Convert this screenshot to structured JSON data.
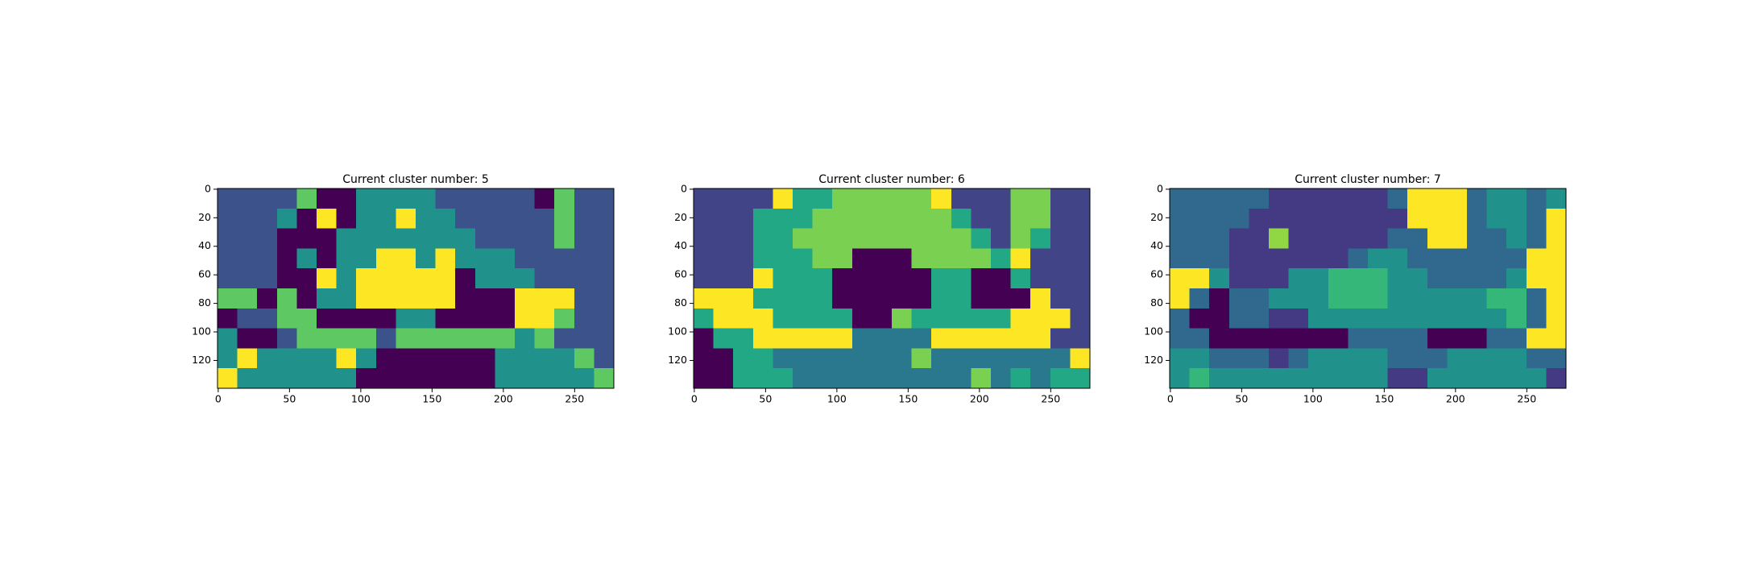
{
  "chart_data": [
    {
      "type": "heatmap",
      "title": "Current cluster number: 5",
      "colors": [
        "#440154",
        "#3b528b",
        "#21918c",
        "#5ec962",
        "#fde725"
      ],
      "xlim": [
        -0.5,
        277.5
      ],
      "ylim": [
        139.5,
        -0.5
      ],
      "xticks": [
        0,
        50,
        100,
        150,
        200,
        250
      ],
      "yticks": [
        0,
        20,
        40,
        60,
        80,
        100,
        120
      ],
      "z": [
        [
          1,
          1,
          1,
          1,
          3,
          0,
          0,
          2,
          2,
          2,
          2,
          1,
          1,
          1,
          1,
          1,
          0,
          3,
          1,
          1
        ],
        [
          1,
          1,
          1,
          2,
          0,
          4,
          0,
          2,
          2,
          4,
          2,
          2,
          1,
          1,
          1,
          1,
          1,
          3,
          1,
          1
        ],
        [
          1,
          1,
          1,
          0,
          0,
          0,
          2,
          2,
          2,
          2,
          2,
          2,
          2,
          1,
          1,
          1,
          1,
          3,
          1,
          1
        ],
        [
          1,
          1,
          1,
          0,
          2,
          0,
          2,
          2,
          4,
          4,
          2,
          4,
          2,
          2,
          2,
          1,
          1,
          1,
          1,
          1
        ],
        [
          1,
          1,
          1,
          0,
          0,
          4,
          2,
          4,
          4,
          4,
          4,
          4,
          0,
          2,
          2,
          2,
          1,
          1,
          1,
          1
        ],
        [
          3,
          3,
          0,
          3,
          0,
          2,
          2,
          4,
          4,
          4,
          4,
          4,
          0,
          0,
          0,
          4,
          4,
          4,
          1,
          1
        ],
        [
          0,
          1,
          1,
          3,
          3,
          0,
          0,
          0,
          0,
          2,
          2,
          0,
          0,
          0,
          0,
          4,
          4,
          3,
          1,
          1
        ],
        [
          2,
          0,
          0,
          1,
          3,
          3,
          3,
          3,
          1,
          3,
          3,
          3,
          3,
          3,
          3,
          2,
          3,
          1,
          1,
          1
        ],
        [
          2,
          4,
          2,
          2,
          2,
          2,
          4,
          2,
          0,
          0,
          0,
          0,
          0,
          0,
          2,
          2,
          2,
          2,
          3,
          1
        ],
        [
          4,
          2,
          2,
          2,
          2,
          2,
          2,
          0,
          0,
          0,
          0,
          0,
          0,
          0,
          2,
          2,
          2,
          2,
          2,
          3
        ]
      ]
    },
    {
      "type": "heatmap",
      "title": "Current cluster number: 6",
      "colors": [
        "#440154",
        "#414487",
        "#2a788e",
        "#22a884",
        "#7ad151",
        "#fde725"
      ],
      "xlim": [
        -0.5,
        277.5
      ],
      "ylim": [
        139.5,
        -0.5
      ],
      "xticks": [
        0,
        50,
        100,
        150,
        200,
        250
      ],
      "yticks": [
        0,
        20,
        40,
        60,
        80,
        100,
        120
      ],
      "z": [
        [
          1,
          1,
          1,
          1,
          5,
          3,
          3,
          4,
          4,
          4,
          4,
          4,
          5,
          1,
          1,
          1,
          4,
          4,
          1,
          1
        ],
        [
          1,
          1,
          1,
          3,
          3,
          3,
          4,
          4,
          4,
          4,
          4,
          4,
          4,
          3,
          1,
          1,
          4,
          4,
          1,
          1
        ],
        [
          1,
          1,
          1,
          3,
          3,
          4,
          4,
          4,
          4,
          4,
          4,
          4,
          4,
          4,
          3,
          1,
          4,
          3,
          1,
          1
        ],
        [
          1,
          1,
          1,
          3,
          3,
          3,
          4,
          4,
          0,
          0,
          0,
          4,
          4,
          4,
          4,
          3,
          5,
          1,
          1,
          1
        ],
        [
          1,
          1,
          1,
          5,
          3,
          3,
          3,
          0,
          0,
          0,
          0,
          0,
          3,
          3,
          0,
          0,
          3,
          1,
          1,
          1
        ],
        [
          5,
          5,
          5,
          3,
          3,
          3,
          3,
          0,
          0,
          0,
          0,
          0,
          3,
          3,
          0,
          0,
          0,
          5,
          1,
          1
        ],
        [
          3,
          5,
          5,
          5,
          3,
          3,
          3,
          3,
          0,
          0,
          4,
          3,
          3,
          3,
          3,
          3,
          5,
          5,
          5,
          1
        ],
        [
          0,
          3,
          3,
          5,
          5,
          5,
          5,
          5,
          2,
          2,
          2,
          2,
          5,
          5,
          5,
          5,
          5,
          5,
          1,
          1
        ],
        [
          0,
          0,
          3,
          3,
          2,
          2,
          2,
          2,
          2,
          2,
          2,
          4,
          2,
          2,
          2,
          2,
          2,
          2,
          2,
          5
        ],
        [
          0,
          0,
          3,
          3,
          3,
          2,
          2,
          2,
          2,
          2,
          2,
          2,
          2,
          2,
          4,
          2,
          3,
          2,
          3,
          3
        ]
      ]
    },
    {
      "type": "heatmap",
      "title": "Current cluster number: 7",
      "colors": [
        "#440154",
        "#443983",
        "#31688e",
        "#21918c",
        "#35b779",
        "#90d743",
        "#fde725"
      ],
      "xlim": [
        -0.5,
        277.5
      ],
      "ylim": [
        139.5,
        -0.5
      ],
      "xticks": [
        0,
        50,
        100,
        150,
        200,
        250
      ],
      "yticks": [
        0,
        20,
        40,
        60,
        80,
        100,
        120
      ],
      "z": [
        [
          2,
          2,
          2,
          2,
          2,
          1,
          1,
          1,
          1,
          1,
          1,
          2,
          6,
          6,
          6,
          2,
          3,
          3,
          2,
          3
        ],
        [
          2,
          2,
          2,
          2,
          1,
          1,
          1,
          1,
          1,
          1,
          1,
          1,
          6,
          6,
          6,
          2,
          3,
          3,
          2,
          6
        ],
        [
          2,
          2,
          2,
          1,
          1,
          5,
          1,
          1,
          1,
          1,
          1,
          2,
          2,
          6,
          6,
          2,
          2,
          3,
          2,
          6
        ],
        [
          2,
          2,
          2,
          1,
          1,
          1,
          1,
          1,
          1,
          2,
          3,
          3,
          2,
          2,
          2,
          2,
          2,
          2,
          6,
          6
        ],
        [
          6,
          6,
          3,
          1,
          1,
          1,
          3,
          3,
          4,
          4,
          4,
          3,
          3,
          2,
          2,
          2,
          2,
          3,
          6,
          6
        ],
        [
          6,
          2,
          0,
          2,
          2,
          3,
          3,
          3,
          4,
          4,
          4,
          3,
          3,
          3,
          3,
          3,
          4,
          4,
          2,
          6
        ],
        [
          2,
          0,
          0,
          2,
          2,
          1,
          1,
          3,
          3,
          3,
          3,
          3,
          3,
          3,
          3,
          3,
          3,
          4,
          2,
          6
        ],
        [
          2,
          2,
          0,
          0,
          0,
          0,
          0,
          0,
          0,
          2,
          2,
          2,
          2,
          0,
          0,
          0,
          2,
          2,
          6,
          6
        ],
        [
          3,
          3,
          2,
          2,
          2,
          1,
          2,
          3,
          3,
          3,
          3,
          2,
          2,
          2,
          3,
          3,
          3,
          3,
          2,
          2
        ],
        [
          3,
          4,
          3,
          3,
          3,
          3,
          3,
          3,
          3,
          3,
          3,
          1,
          1,
          3,
          3,
          3,
          3,
          3,
          3,
          1
        ]
      ]
    }
  ]
}
